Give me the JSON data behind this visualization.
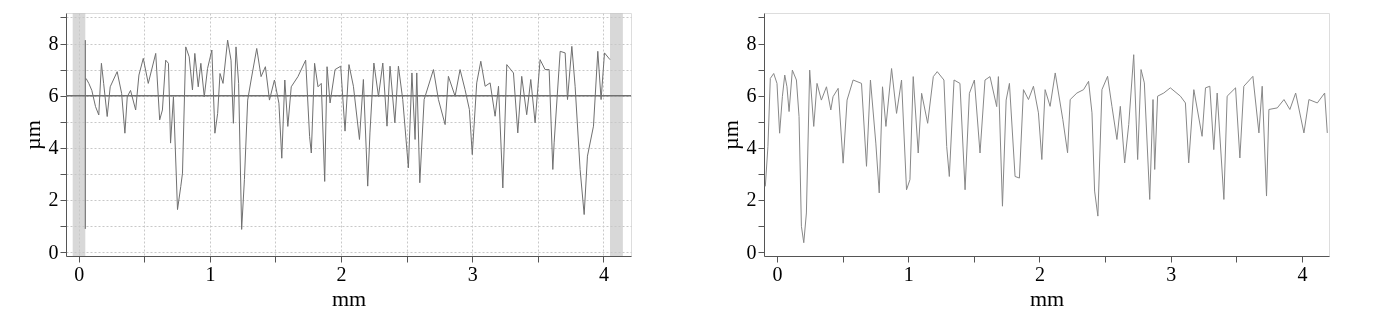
{
  "chart_data": [
    {
      "type": "line",
      "xlabel": "mm",
      "ylabel": "µm",
      "xlim": [
        -0.097,
        4.21
      ],
      "ylim": [
        -0.15,
        9.17
      ],
      "xticks": [
        0,
        {
          "value": 0.5,
          "label": null
        },
        1,
        {
          "value": 1.5,
          "label": null
        },
        2,
        {
          "value": 2.5,
          "label": null
        },
        3,
        {
          "value": 3.5,
          "label": null
        },
        4
      ],
      "yticks": [
        0,
        {
          "value": 1,
          "label": null
        },
        2,
        {
          "value": 3,
          "label": null
        },
        4,
        {
          "value": 5,
          "label": null
        },
        6,
        {
          "value": 7,
          "label": null
        },
        8,
        {
          "value": 9,
          "label": null
        }
      ],
      "grid": true,
      "bands": [
        {
          "axis": "x",
          "from": -0.046,
          "to": 0.05,
          "color": "#c8c8c8"
        },
        {
          "axis": "x",
          "from": 4.05,
          "to": 4.148,
          "color": "#c8c8c8"
        }
      ],
      "ref_lines": [
        {
          "axis": "y",
          "value": 6,
          "color": "#707070",
          "line_style": "solid"
        }
      ],
      "series": [
        {
          "color": "#707070",
          "x": [
            0.056,
            0.077,
            0.1,
            0.128,
            0.153,
            0.173,
            0.19,
            0.217,
            0.24,
            0.293,
            0.327,
            0.352,
            0.37,
            0.395,
            0.434,
            0.459,
            0.492,
            0.53,
            0.587,
            0.617,
            0.638,
            0.663,
            0.684,
            0.7,
            0.722,
            0.753,
            0.778,
            0.791,
            0.816,
            0.842,
            0.867,
            0.885,
            0.911,
            0.931,
            0.957,
            0.982,
            1.015,
            1.038,
            1.059,
            1.077,
            1.1,
            1.135,
            1.161,
            1.179,
            1.199,
            1.219,
            1.242,
            1.263,
            1.288,
            1.314,
            1.357,
            1.39,
            1.423,
            1.454,
            1.492,
            1.526,
            1.548,
            1.571,
            1.594,
            1.62,
            1.671,
            1.73,
            1.76,
            1.773,
            1.798,
            1.824,
            1.849,
            1.875,
            1.893,
            1.916,
            1.954,
            1.997,
            2.03,
            2.06,
            2.094,
            2.14,
            2.17,
            2.203,
            2.22,
            2.25,
            2.285,
            2.318,
            2.35,
            2.373,
            2.41,
            2.437,
            2.47,
            2.513,
            2.54,
            2.564,
            2.577,
            2.6,
            2.633,
            2.704,
            2.742,
            2.793,
            2.818,
            2.869,
            2.907,
            2.945,
            2.978,
            3.0,
            3.034,
            3.065,
            3.098,
            3.136,
            3.174,
            3.2,
            3.233,
            3.263,
            3.314,
            3.347,
            3.377,
            3.415,
            3.446,
            3.479,
            3.517,
            3.555,
            3.586,
            3.614,
            3.624,
            3.67,
            3.708,
            3.726,
            3.759,
            3.784,
            3.822,
            3.853,
            3.878,
            3.924,
            3.957,
            3.982,
            4.008,
            4.05
          ],
          "values": [
            6.66,
            6.47,
            6.2,
            5.58,
            5.26,
            7.24,
            6.47,
            5.2,
            6.34,
            6.92,
            6.09,
            4.56,
            5.96,
            6.2,
            5.45,
            6.79,
            7.43,
            6.47,
            7.62,
            5.07,
            5.45,
            7.36,
            7.24,
            4.18,
            5.96,
            1.63,
            2.52,
            3.03,
            7.87,
            7.49,
            6.22,
            7.62,
            6.34,
            7.24,
            5.96,
            7.04,
            7.75,
            4.56,
            5.32,
            6.85,
            6.47,
            8.13,
            7.36,
            4.94,
            7.87,
            6.47,
            0.87,
            2.78,
            5.83,
            6.6,
            7.81,
            6.73,
            7.11,
            5.83,
            6.6,
            5.71,
            3.6,
            6.6,
            4.82,
            6.34,
            6.73,
            7.36,
            4.43,
            3.8,
            7.24,
            6.34,
            6.47,
            2.71,
            7.11,
            5.72,
            7.0,
            7.13,
            4.64,
            7.19,
            6.36,
            4.32,
            6.62,
            2.53,
            4.57,
            7.25,
            5.97,
            7.25,
            4.83,
            7.13,
            4.96,
            7.13,
            5.85,
            3.23,
            6.87,
            4.32,
            6.87,
            2.66,
            5.85,
            7.0,
            5.85,
            4.89,
            6.74,
            5.98,
            7.0,
            6.23,
            5.47,
            3.74,
            6.49,
            7.32,
            6.36,
            6.49,
            5.21,
            6.36,
            2.46,
            7.19,
            6.87,
            4.57,
            6.74,
            5.27,
            6.62,
            4.96,
            7.38,
            7.0,
            7.0,
            3.17,
            4.19,
            7.7,
            7.64,
            5.85,
            7.89,
            6.36,
            3.17,
            1.44,
            3.68,
            4.83,
            7.7,
            5.85,
            7.64,
            7.38
          ]
        },
        {
          "type": "line",
          "color": "#606060",
          "x": [
            0.05,
            0.05
          ],
          "values": [
            0.89,
            8.13
          ]
        }
      ]
    },
    {
      "type": "line",
      "xlabel": "mm",
      "ylabel": "µm",
      "xlim": [
        -0.099,
        4.206
      ],
      "ylim": [
        -0.15,
        9.17
      ],
      "xticks": [
        0,
        {
          "value": 0.5,
          "label": null
        },
        1,
        {
          "value": 1.5,
          "label": null
        },
        2,
        {
          "value": 2.5,
          "label": null
        },
        3,
        {
          "value": 3.5,
          "label": null
        },
        4
      ],
      "yticks": [
        0,
        {
          "value": 1,
          "label": null
        },
        2,
        {
          "value": 3,
          "label": null
        },
        4,
        {
          "value": 5,
          "label": null
        },
        6,
        {
          "value": 7,
          "label": null
        },
        8,
        {
          "value": 9,
          "label": null
        }
      ],
      "series": [
        {
          "color": "#888888",
          "x": [
            -0.089,
            -0.069,
            -0.051,
            -0.025,
            0,
            0.02,
            0.041,
            0.059,
            0.076,
            0.092,
            0.117,
            0.148,
            0.168,
            0.186,
            0.204,
            0.224,
            0.249,
            0.28,
            0.305,
            0.338,
            0.377,
            0.41,
            0.427,
            0.466,
            0.504,
            0.534,
            0.58,
            0.644,
            0.682,
            0.712,
            0.753,
            0.779,
            0.804,
            0.83,
            0.873,
            0.911,
            0.949,
            0.987,
            1.013,
            1.038,
            1.076,
            1.102,
            1.148,
            1.191,
            1.221,
            1.272,
            1.293,
            1.313,
            1.349,
            1.394,
            1.433,
            1.466,
            1.504,
            1.547,
            1.585,
            1.623,
            1.674,
            1.687,
            1.718,
            1.746,
            1.771,
            1.814,
            1.847,
            1.878,
            1.916,
            1.954,
            1.992,
            2.018,
            2.043,
            2.081,
            2.12,
            2.178,
            2.214,
            2.234,
            2.285,
            2.336,
            2.374,
            2.4,
            2.42,
            2.445,
            2.476,
            2.519,
            2.552,
            2.59,
            2.616,
            2.649,
            2.68,
            2.718,
            2.748,
            2.774,
            2.799,
            2.84,
            2.865,
            2.878,
            2.9,
            2.947,
            2.997,
            3.074,
            3.112,
            3.137,
            3.176,
            3.239,
            3.265,
            3.298,
            3.328,
            3.354,
            3.405,
            3.43,
            3.494,
            3.527,
            3.557,
            3.626,
            3.672,
            3.697,
            3.73,
            3.748,
            3.812,
            3.863,
            3.908,
            3.952,
            4.015,
            4.053,
            4.117,
            4.173,
            4.193
          ],
          "values": [
            2.52,
            4.05,
            6.66,
            6.85,
            6.47,
            4.56,
            5.96,
            6.79,
            6.34,
            5.39,
            6.98,
            6.6,
            5.2,
            0.99,
            0.36,
            1.5,
            6.98,
            4.82,
            6.47,
            5.83,
            6.34,
            5.45,
            5.96,
            6.28,
            3.41,
            5.83,
            6.6,
            6.47,
            3.29,
            6.6,
            4.18,
            2.27,
            6.34,
            4.82,
            7.04,
            5.32,
            6.6,
            2.39,
            2.78,
            6.73,
            3.8,
            6.09,
            4.94,
            6.73,
            6.92,
            6.6,
            4.05,
            2.9,
            6.6,
            6.47,
            2.39,
            6.09,
            6.6,
            3.8,
            6.6,
            6.73,
            5.58,
            6.73,
            1.76,
            5.83,
            6.47,
            2.9,
            2.84,
            6.23,
            5.85,
            6.36,
            5.34,
            3.55,
            6.23,
            5.59,
            6.87,
            5.08,
            3.81,
            5.85,
            6.1,
            6.23,
            6.55,
            5.34,
            2.34,
            1.38,
            6.23,
            6.74,
            5.59,
            4.32,
            5.59,
            3.42,
            4.89,
            7.57,
            3.55,
            7.0,
            6.49,
            2.02,
            5.85,
            3.17,
            5.98,
            6.1,
            6.3,
            5.98,
            5.72,
            3.42,
            6.23,
            4.44,
            6.3,
            6.36,
            3.93,
            6.1,
            2.02,
            5.98,
            6.3,
            3.61,
            6.36,
            6.74,
            4.57,
            6.36,
            2.15,
            5.47,
            5.53,
            5.85,
            5.47,
            6.1,
            4.57,
            5.85,
            5.72,
            6.1,
            4.57
          ]
        }
      ]
    }
  ]
}
